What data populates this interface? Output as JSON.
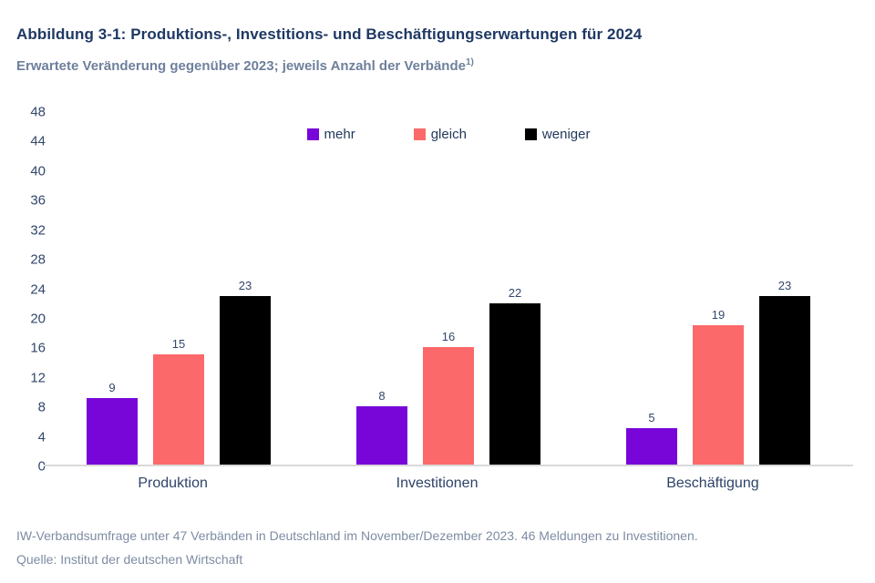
{
  "header": {
    "title": "Abbildung 3-1: Produktions-, Investitions- und Beschäftigungserwartungen für 2024",
    "subtitle": "Erwartete Veränderung gegenüber 2023; jeweils Anzahl der Verbände",
    "subtitle_superscript": "1)"
  },
  "chart_data": {
    "type": "bar",
    "title": "Produktions-, Investitions- und Beschäftigungserwartungen für 2024",
    "categories": [
      "Produktion",
      "Investitionen",
      "Beschäftigung"
    ],
    "series": [
      {
        "name": "mehr",
        "color": "#7806d9",
        "values": [
          9,
          8,
          5
        ]
      },
      {
        "name": "gleich",
        "color": "#fc696b",
        "values": [
          15,
          16,
          19
        ]
      },
      {
        "name": "weniger",
        "color": "#000000",
        "values": [
          23,
          22,
          23
        ]
      }
    ],
    "xlabel": "",
    "ylabel": "",
    "ylim": [
      0,
      48
    ],
    "yticks": [
      0,
      4,
      8,
      12,
      16,
      20,
      24,
      28,
      32,
      36,
      40,
      44,
      48
    ],
    "grid": false,
    "legend_position": "top-center",
    "value_labels": true
  },
  "footer": {
    "note": "IW-Verbandsumfrage unter 47 Verbänden in Deutschland im November/Dezember 2023. 46 Meldungen zu Investitionen.",
    "source": "Quelle: Institut der deutschen Wirtschaft"
  },
  "colors": {
    "title_text": "#1f3864",
    "subtitle_text": "#6e809c",
    "axis_text": "#33476b",
    "baseline": "#d9d9d9",
    "footer_text": "#7d8ca3"
  }
}
